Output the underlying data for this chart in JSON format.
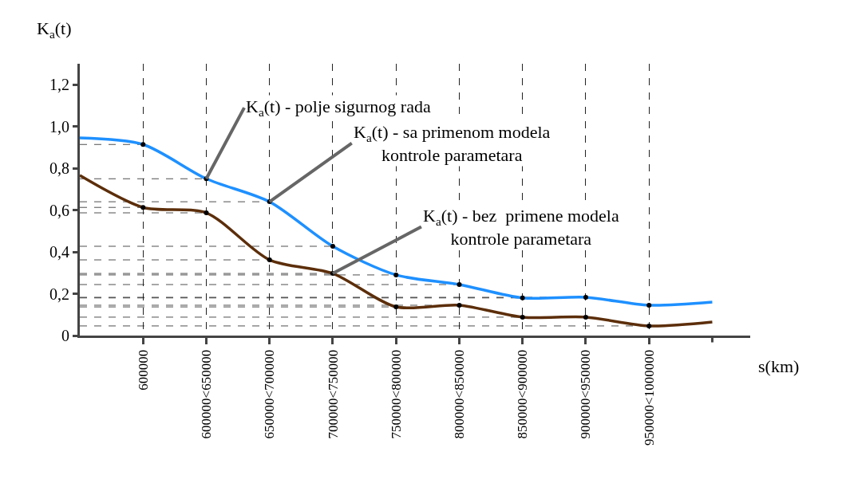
{
  "chart_data": {
    "type": "line",
    "xlabel": "s(km)",
    "ylabel": "K$_{a}$(t)",
    "categories": [
      null,
      "600000",
      "600000<650000",
      "650000<700000",
      "700000<750000",
      "750000<800000",
      "800000<850000",
      "850000<900000",
      "900000<950000",
      "950000<1000000",
      null
    ],
    "series": [
      {
        "color": "#1e90ff",
        "values": [
          0.945,
          0.914,
          0.75,
          0.64,
          0.427,
          0.29,
          0.244,
          0.18,
          0.183,
          0.145,
          0.16
        ]
      },
      {
        "color": "#5c2e0a",
        "values": [
          0.766,
          0.613,
          0.587,
          0.362,
          0.297,
          0.137,
          0.145,
          0.088,
          0.088,
          0.046,
          0.065
        ]
      }
    ],
    "ylim": [
      0,
      1.3
    ],
    "yticks": [
      0,
      {
        "value": 0.2,
        "label": "0,2"
      },
      {
        "value": 0.4,
        "label": "0,4"
      },
      {
        "value": 0.6,
        "label": "0,6"
      },
      {
        "value": 0.8,
        "label": "0,8"
      },
      {
        "value": 1.0,
        "label": "1,0"
      },
      {
        "value": 1.2,
        "label": "1,2"
      }
    ],
    "annotations": [
      {
        "text": "K$_{a}$(t) - polje sigurnog rada",
        "x": "600000<650000",
        "y": 0.75
      },
      {
        "text": "K$_{a}$(t) - sa primenom modela\nkontrole parametara",
        "x": "650000<700000",
        "y": 0.64
      },
      {
        "text": "K$_{a}$(t) - bez  primene modela\nkontrole parametara",
        "x": "700000<750000",
        "y": 0.297
      }
    ],
    "ref_lines": [
      {
        "axis": "y",
        "value": 0.914,
        "line_style": "dashed"
      },
      {
        "axis": "y",
        "value": 0.75,
        "line_style": "dashed"
      },
      {
        "axis": "y",
        "value": 0.64,
        "line_style": "dashed"
      },
      {
        "axis": "y",
        "value": 0.427,
        "line_style": "dashed"
      },
      {
        "axis": "y",
        "value": 0.29,
        "line_style": "dashed"
      },
      {
        "axis": "y",
        "value": 0.244,
        "line_style": "dashed"
      },
      {
        "axis": "y",
        "value": 0.18,
        "line_style": "dashed"
      },
      {
        "axis": "y",
        "value": 0.183,
        "line_style": "dashed"
      },
      {
        "axis": "y",
        "value": 0.145,
        "line_style": "dashed"
      },
      {
        "axis": "y",
        "value": 0.613,
        "line_style": "dashed"
      },
      {
        "axis": "y",
        "value": 0.587,
        "line_style": "dashed"
      },
      {
        "axis": "y",
        "value": 0.362,
        "line_style": "dashed"
      },
      {
        "axis": "y",
        "value": 0.297,
        "line_style": "dashed"
      },
      {
        "axis": "y",
        "value": 0.137,
        "line_style": "dashed"
      },
      {
        "axis": "y",
        "value": 0.088,
        "line_style": "dashed"
      },
      {
        "axis": "y",
        "value": 0.046,
        "line_style": "dashed"
      }
    ],
    "grid": "x",
    "marker": "circle",
    "line_style": "solid"
  }
}
